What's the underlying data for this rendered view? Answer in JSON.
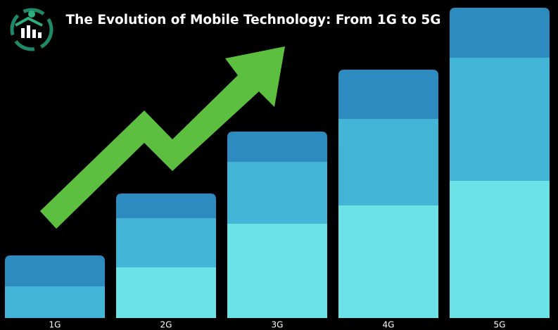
{
  "header": {
    "title": "The Evolution of Mobile Technology: From 1G to 5G"
  },
  "generations": [
    "1G",
    "2G",
    "3G",
    "4G",
    "5G"
  ]
}
